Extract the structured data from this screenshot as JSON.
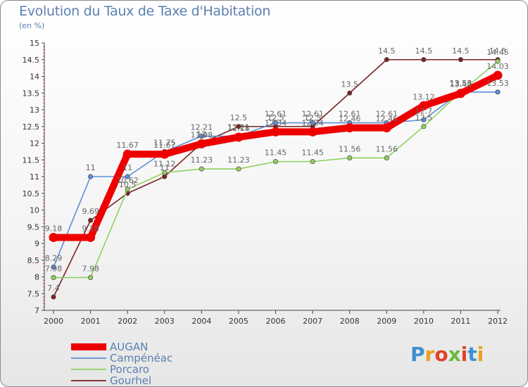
{
  "title": "Evolution du Taux de Taxe d'Habitation",
  "subtitle": "(en %)",
  "logo": {
    "text": "Proxiti",
    "letter_colors": [
      "#3f8fd0",
      "#e7a21e",
      "#e0422a",
      "#6aba38",
      "#e0422a",
      "#3f8fd0",
      "#e7a21e"
    ]
  },
  "chart_data": {
    "type": "line",
    "x": [
      "2000",
      "2001",
      "2002",
      "2003",
      "2004",
      "2005",
      "2006",
      "2007",
      "2008",
      "2009",
      "2010",
      "2011",
      "2012"
    ],
    "ylim": [
      7,
      15
    ],
    "yticks": [
      "7",
      "7.5",
      "8",
      "8.5",
      "9",
      "9.5",
      "10",
      "10.5",
      "11",
      "11.5",
      "12",
      "12.5",
      "13",
      "13.5",
      "14",
      "14.5",
      "15"
    ],
    "grid": false,
    "legend_position": "bottom-left",
    "series": [
      {
        "name": "AUGAN",
        "color": "#ee0000",
        "values": [
          9.18,
          9.18,
          11.67,
          11.67,
          11.98,
          12.18,
          12.34,
          12.34,
          12.46,
          12.46,
          13.12,
          13.49,
          14.03
        ],
        "labels": [
          "9.18",
          "9.18",
          "11.67",
          "11.67",
          "11.98",
          "12.18",
          "12.34",
          "12.34",
          "12.46",
          "12.46",
          "13.12",
          "13.49",
          "14.03"
        ]
      },
      {
        "name": "Campénéac",
        "color": "#5b8ed6",
        "values": [
          8.29,
          11,
          11,
          11.75,
          12.21,
          12.21,
          12.61,
          12.61,
          12.61,
          12.61,
          12.7,
          13.53,
          13.53
        ],
        "labels": [
          "8.29",
          "11",
          "11",
          "11.75",
          "12.21",
          "12.21",
          "12.61",
          "12.61",
          "12.61",
          "12.61",
          "12.7",
          "13.53",
          "13.53"
        ]
      },
      {
        "name": "Porcaro",
        "color": "#8fd15e",
        "values": [
          7.98,
          7.98,
          10.62,
          11.12,
          11.23,
          11.23,
          11.45,
          11.45,
          11.56,
          11.56,
          12.5,
          13.53,
          14.45
        ],
        "labels": [
          "7.98",
          "7.98",
          "10.62",
          "11.12",
          "11.23",
          "11.23",
          "11.45",
          "11.45",
          "11.56",
          "11.56",
          "12.5",
          "13.53",
          "14.45"
        ]
      },
      {
        "name": "Gourhel",
        "color": "#7a2222",
        "values": [
          7.4,
          9.69,
          10.5,
          11,
          12,
          12.5,
          12.5,
          12.5,
          13.5,
          14.5,
          14.5,
          14.5,
          14.5
        ],
        "labels": [
          "7.4",
          "9.69",
          "10.5",
          "11",
          "12",
          "12.5",
          "12.5",
          "12.5",
          "13.5",
          "14.5",
          "14.5",
          "14.5",
          "14.5"
        ]
      }
    ]
  }
}
